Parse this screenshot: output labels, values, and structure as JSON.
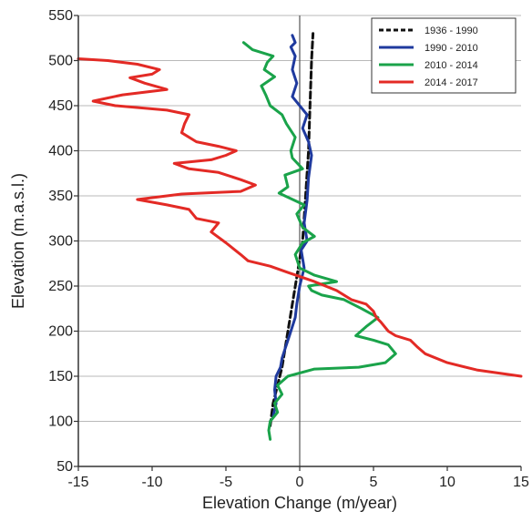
{
  "chart_data": {
    "type": "line",
    "title": "",
    "xlabel": "Elevation Change (m/year)",
    "ylabel": "Elevation (m.a.s.l.)",
    "xlim": [
      -15,
      15
    ],
    "ylim": [
      50,
      550
    ],
    "x_ticks": [
      -15,
      -10,
      -5,
      0,
      5,
      10,
      15
    ],
    "y_ticks": [
      50,
      100,
      150,
      200,
      250,
      300,
      350,
      400,
      450,
      500,
      550
    ],
    "grid": "horizontal",
    "zero_line": true,
    "legend_position": "top-right",
    "series": [
      {
        "name": "1936 - 1990",
        "color": "#111111",
        "dashed": true,
        "points": [
          [
            -2.0,
            95
          ],
          [
            -1.8,
            120
          ],
          [
            -1.2,
            160
          ],
          [
            -0.6,
            220
          ],
          [
            -0.2,
            260
          ],
          [
            0.2,
            300
          ],
          [
            0.4,
            350
          ],
          [
            0.6,
            400
          ],
          [
            0.7,
            450
          ],
          [
            0.8,
            500
          ],
          [
            0.9,
            530
          ]
        ]
      },
      {
        "name": "1990 - 2010",
        "color": "#1f3a9e",
        "dashed": false,
        "points": [
          [
            -1.8,
            105
          ],
          [
            -1.6,
            120
          ],
          [
            -1.7,
            135
          ],
          [
            -1.6,
            150
          ],
          [
            -1.3,
            160
          ],
          [
            -1.2,
            170
          ],
          [
            -1.0,
            180
          ],
          [
            -0.7,
            195
          ],
          [
            -0.3,
            215
          ],
          [
            -0.2,
            230
          ],
          [
            0.0,
            250
          ],
          [
            0.3,
            270
          ],
          [
            0.1,
            290
          ],
          [
            0.5,
            300
          ],
          [
            0.3,
            320
          ],
          [
            0.5,
            345
          ],
          [
            0.6,
            370
          ],
          [
            0.8,
            395
          ],
          [
            0.6,
            410
          ],
          [
            0.2,
            425
          ],
          [
            0.5,
            440
          ],
          [
            -0.5,
            460
          ],
          [
            -0.2,
            475
          ],
          [
            -0.5,
            490
          ],
          [
            -0.3,
            505
          ],
          [
            -0.6,
            515
          ],
          [
            -0.3,
            520
          ],
          [
            -0.5,
            528
          ]
        ]
      },
      {
        "name": "2010 - 2014",
        "color": "#1aa34a",
        "dashed": false,
        "points": [
          [
            -2.0,
            80
          ],
          [
            -2.1,
            90
          ],
          [
            -2.0,
            100
          ],
          [
            -1.5,
            110
          ],
          [
            -1.7,
            120
          ],
          [
            -1.2,
            130
          ],
          [
            -1.5,
            140
          ],
          [
            -0.8,
            150
          ],
          [
            1.0,
            158
          ],
          [
            4.0,
            160
          ],
          [
            5.8,
            165
          ],
          [
            6.5,
            175
          ],
          [
            6.0,
            185
          ],
          [
            5.0,
            190
          ],
          [
            3.8,
            195
          ],
          [
            4.5,
            205
          ],
          [
            5.3,
            215
          ],
          [
            4.2,
            225
          ],
          [
            3.0,
            235
          ],
          [
            1.5,
            240
          ],
          [
            0.8,
            245
          ],
          [
            0.6,
            250
          ],
          [
            2.5,
            255
          ],
          [
            1.0,
            262
          ],
          [
            0.0,
            270
          ],
          [
            -0.3,
            285
          ],
          [
            0.2,
            298
          ],
          [
            1.0,
            305
          ],
          [
            0.2,
            315
          ],
          [
            -0.2,
            330
          ],
          [
            0.3,
            340
          ],
          [
            -1.4,
            353
          ],
          [
            -0.8,
            360
          ],
          [
            -1.0,
            373
          ],
          [
            0.2,
            380
          ],
          [
            -0.5,
            392
          ],
          [
            -0.6,
            400
          ],
          [
            -0.3,
            415
          ],
          [
            -0.9,
            430
          ],
          [
            -1.2,
            440
          ],
          [
            -2.0,
            450
          ],
          [
            -2.3,
            462
          ],
          [
            -2.6,
            472
          ],
          [
            -1.7,
            482
          ],
          [
            -2.4,
            490
          ],
          [
            -2.2,
            498
          ],
          [
            -1.8,
            505
          ],
          [
            -3.2,
            512
          ],
          [
            -3.8,
            520
          ]
        ]
      },
      {
        "name": "2014 - 2017",
        "color": "#e32a25",
        "dashed": false,
        "points": [
          [
            15.0,
            150
          ],
          [
            12.0,
            157
          ],
          [
            10.0,
            165
          ],
          [
            8.5,
            175
          ],
          [
            8.0,
            182
          ],
          [
            7.5,
            190
          ],
          [
            6.5,
            195
          ],
          [
            6.0,
            200
          ],
          [
            5.5,
            210
          ],
          [
            5.2,
            215
          ],
          [
            5.0,
            222
          ],
          [
            4.5,
            230
          ],
          [
            3.5,
            235
          ],
          [
            2.5,
            245
          ],
          [
            1.0,
            255
          ],
          [
            -0.8,
            265
          ],
          [
            -2.0,
            272
          ],
          [
            -3.5,
            278
          ],
          [
            -4.0,
            285
          ],
          [
            -5.0,
            298
          ],
          [
            -6.0,
            310
          ],
          [
            -5.5,
            320
          ],
          [
            -7.0,
            325
          ],
          [
            -7.5,
            335
          ],
          [
            -9.0,
            340
          ],
          [
            -11.0,
            346
          ],
          [
            -8.0,
            352
          ],
          [
            -4.0,
            355
          ],
          [
            -3.0,
            362
          ],
          [
            -4.0,
            368
          ],
          [
            -5.5,
            376
          ],
          [
            -7.5,
            380
          ],
          [
            -8.5,
            386
          ],
          [
            -6.0,
            390
          ],
          [
            -5.0,
            395
          ],
          [
            -4.3,
            400
          ],
          [
            -5.5,
            405
          ],
          [
            -7.0,
            410
          ],
          [
            -8.0,
            420
          ],
          [
            -7.8,
            430
          ],
          [
            -7.5,
            440
          ],
          [
            -9.0,
            445
          ],
          [
            -12.5,
            450
          ],
          [
            -14.0,
            455
          ],
          [
            -12.0,
            462
          ],
          [
            -9.0,
            468
          ],
          [
            -10.5,
            475
          ],
          [
            -11.5,
            481
          ],
          [
            -10.0,
            485
          ],
          [
            -9.5,
            490
          ],
          [
            -11.0,
            496
          ],
          [
            -13.0,
            500
          ],
          [
            -15.0,
            502
          ]
        ]
      }
    ]
  }
}
